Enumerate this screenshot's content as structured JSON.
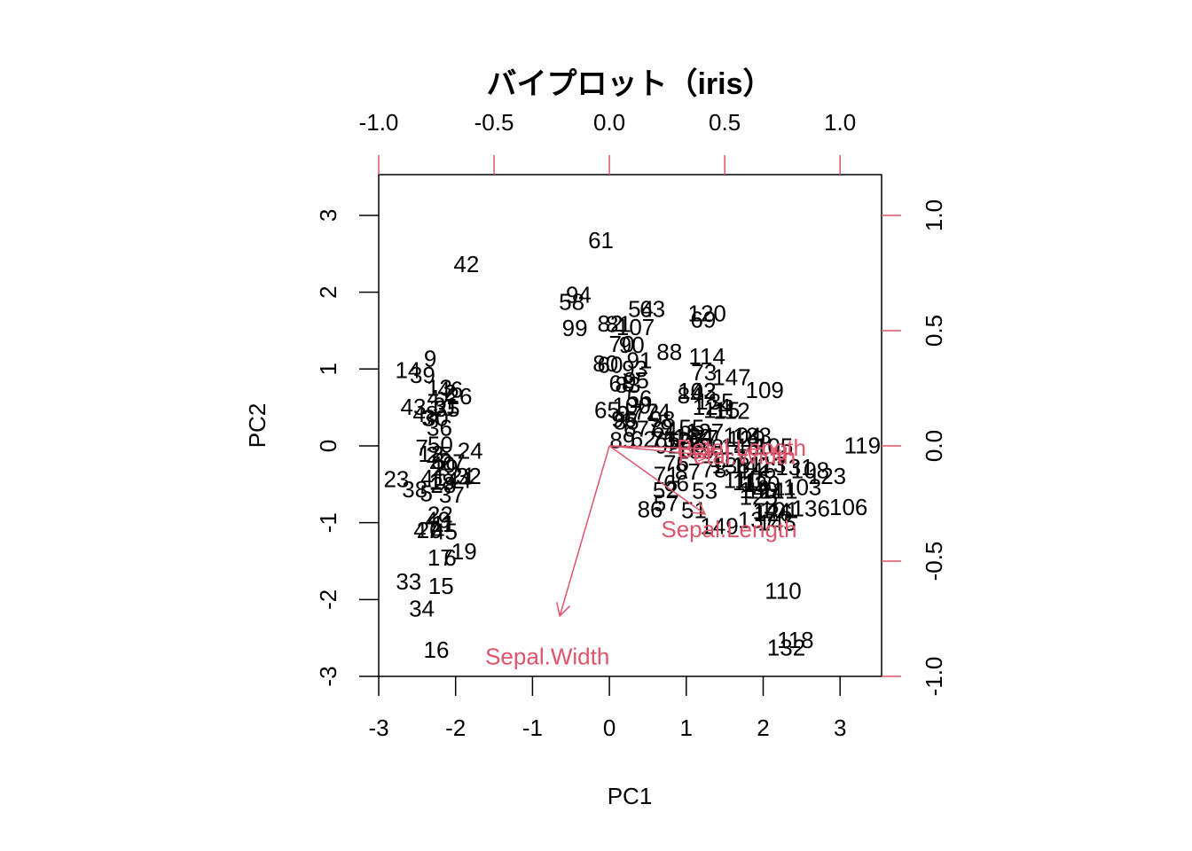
{
  "chart_data": {
    "type": "biplot",
    "title": "バイプロット（iris）",
    "x_label": "PC1",
    "y_label": "PC2",
    "xlim": [
      -3.0,
      3.54
    ],
    "ylim": [
      -3.0,
      3.53
    ],
    "xticks": [
      -3,
      -2,
      -1,
      0,
      1,
      2,
      3
    ],
    "yticks": [
      -3,
      -2,
      -1,
      0,
      1,
      2,
      3
    ],
    "x2lim": [
      -1.0,
      1.18
    ],
    "y2lim": [
      -1.0,
      1.177
    ],
    "x2ticks": [
      {
        "value": -1,
        "label": "-1.0"
      },
      -0.5,
      {
        "value": 0,
        "label": "0.0"
      },
      0.5,
      {
        "value": 1,
        "label": "1.0"
      }
    ],
    "y2ticks": [
      {
        "value": -1,
        "label": "-1.0"
      },
      -0.5,
      {
        "value": 0,
        "label": "0.0"
      },
      0.5,
      {
        "value": 1,
        "label": "1.0"
      }
    ],
    "point_color": "#000000",
    "loading_color": "#DF536B",
    "point_labels": [
      "1",
      "2",
      "3",
      "4",
      "5",
      "6",
      "7",
      "8",
      "9",
      "10",
      "11",
      "12",
      "13",
      "14",
      "15",
      "16",
      "17",
      "18",
      "19",
      "20",
      "21",
      "22",
      "23",
      "24",
      "25",
      "26",
      "27",
      "28",
      "29",
      "30",
      "31",
      "32",
      "33",
      "34",
      "35",
      "36",
      "37",
      "38",
      "39",
      "40",
      "41",
      "42",
      "43",
      "44",
      "45",
      "46",
      "47",
      "48",
      "49",
      "50",
      "51",
      "52",
      "53",
      "54",
      "55",
      "56",
      "57",
      "58",
      "59",
      "60",
      "61",
      "62",
      "63",
      "64",
      "65",
      "66",
      "67",
      "68",
      "69",
      "70",
      "71",
      "72",
      "73",
      "74",
      "75",
      "76",
      "77",
      "78",
      "79",
      "80",
      "81",
      "82",
      "83",
      "84",
      "85",
      "86",
      "87",
      "88",
      "89",
      "90",
      "91",
      "92",
      "93",
      "94",
      "95",
      "96",
      "97",
      "98",
      "99",
      "100",
      "101",
      "102",
      "103",
      "104",
      "105",
      "106",
      "107",
      "108",
      "109",
      "110",
      "111",
      "112",
      "113",
      "114",
      "115",
      "116",
      "117",
      "118",
      "119",
      "120",
      "121",
      "122",
      "123",
      "124",
      "125",
      "126",
      "127",
      "128",
      "129",
      "130",
      "131",
      "132",
      "133",
      "134",
      "135",
      "136",
      "137",
      "138",
      "139",
      "140",
      "141",
      "142",
      "143",
      "144",
      "145",
      "146",
      "147",
      "148",
      "149",
      "150"
    ],
    "x": [
      -2.26,
      -2.07,
      -2.36,
      -2.29,
      -2.38,
      -2.07,
      -2.44,
      -2.23,
      -2.33,
      -2.18,
      -2.16,
      -2.32,
      -2.21,
      -2.62,
      -2.19,
      -2.25,
      -2.2,
      -2.18,
      -1.89,
      -2.34,
      -1.91,
      -2.2,
      -2.77,
      -1.81,
      -2.22,
      -1.95,
      -2.04,
      -2.16,
      -2.13,
      -2.26,
      -2.13,
      -1.83,
      -2.61,
      -2.44,
      -2.11,
      -2.21,
      -2.05,
      -2.53,
      -2.43,
      -2.17,
      -2.29,
      -1.86,
      -2.55,
      -1.96,
      -2.14,
      -2.07,
      -2.38,
      -2.39,
      -2.23,
      -2.2,
      1.1,
      0.73,
      1.24,
      0.41,
      1.07,
      0.39,
      0.74,
      -0.49,
      0.92,
      0.01,
      -0.11,
      0.44,
      0.56,
      0.72,
      -0.03,
      0.87,
      0.35,
      0.16,
      1.22,
      0.16,
      0.74,
      0.48,
      1.23,
      0.63,
      0.7,
      0.87,
      1.25,
      1.36,
      0.66,
      -0.05,
      0.12,
      0.01,
      0.24,
      1.05,
      0.22,
      0.53,
      1.02,
      0.78,
      0.17,
      0.29,
      0.39,
      0.76,
      0.33,
      -0.4,
      0.35,
      0.19,
      0.26,
      0.69,
      -0.45,
      0.29,
      2.21,
      1.14,
      2.51,
      1.73,
      2.14,
      3.11,
      0.34,
      2.61,
      2.02,
      2.26,
      1.71,
      1.59,
      2.06,
      1.27,
      1.46,
      1.84,
      1.54,
      2.42,
      3.29,
      1.27,
      2.03,
      0.97,
      2.83,
      1.33,
      1.94,
      2.13,
      1.24,
      1.24,
      1.78,
      1.97,
      2.41,
      2.3,
      1.86,
      1.11,
      1.37,
      2.62,
      1.92,
      1.58,
      1.12,
      1.94,
      2.2,
      1.84,
      1.14,
      2.11,
      2.18,
      1.92,
      1.59,
      1.7,
      1.43,
      1.08
    ],
    "y": [
      -0.48,
      0.67,
      0.34,
      0.6,
      -0.64,
      -1.48,
      -0.05,
      -0.22,
      1.11,
      0.47,
      -1.04,
      -0.13,
      0.73,
      0.96,
      -1.85,
      -2.68,
      -1.48,
      -0.49,
      -1.4,
      -1.12,
      -0.41,
      -0.92,
      -0.46,
      -0.09,
      -0.14,
      0.62,
      -0.24,
      -0.53,
      -0.31,
      0.34,
      0.5,
      -0.42,
      -1.79,
      -2.14,
      0.46,
      0.21,
      -0.66,
      -0.59,
      0.9,
      -0.27,
      -0.44,
      2.34,
      0.48,
      -0.47,
      -1.14,
      0.71,
      -1.12,
      0.39,
      -0.99,
      -0.01,
      -0.86,
      -0.6,
      -0.61,
      1.76,
      0.21,
      0.59,
      -0.77,
      1.85,
      0.03,
      1.03,
      2.65,
      0.06,
      1.76,
      0.19,
      0.44,
      -0.51,
      0.2,
      0.79,
      1.62,
      1.3,
      -0.4,
      0.42,
      0.93,
      0.42,
      0.06,
      -0.25,
      0.08,
      -0.33,
      0.22,
      1.05,
      1.56,
      1.57,
      0.77,
      0.63,
      0.29,
      -0.85,
      -0.36,
      1.2,
      0.05,
      1.29,
      1.09,
      -0.02,
      0.98,
      1.94,
      0.83,
      0.32,
      0.39,
      0.32,
      1.51,
      0.5,
      -0.86,
      0.69,
      -0.56,
      0.11,
      -0.03,
      -0.82,
      1.52,
      -0.34,
      0.7,
      -1.91,
      -0.47,
      0.43,
      -0.27,
      1.14,
      0.44,
      -0.5,
      -0.2,
      -2.55,
      -0.02,
      1.7,
      -0.61,
      0.05,
      -0.42,
      0.48,
      -0.69,
      -0.9,
      0.16,
      -0.04,
      0.07,
      -0.52,
      -0.3,
      -2.65,
      0.11,
      0.1,
      0.55,
      -0.84,
      -0.99,
      -0.28,
      -0.09,
      -0.6,
      -0.61,
      -0.28,
      0.69,
      -0.87,
      -1.02,
      -0.34,
      0.87,
      -0.03,
      -1.07,
      0.09
    ],
    "loadings": {
      "names": [
        "Sepal.Length",
        "Sepal.Width",
        "Petal.Length",
        "Petal.Width"
      ],
      "x": [
        0.415,
        -0.215,
        0.458,
        0.442
      ],
      "y": [
        -0.296,
        -0.738,
        -0.012,
        -0.042
      ]
    }
  }
}
